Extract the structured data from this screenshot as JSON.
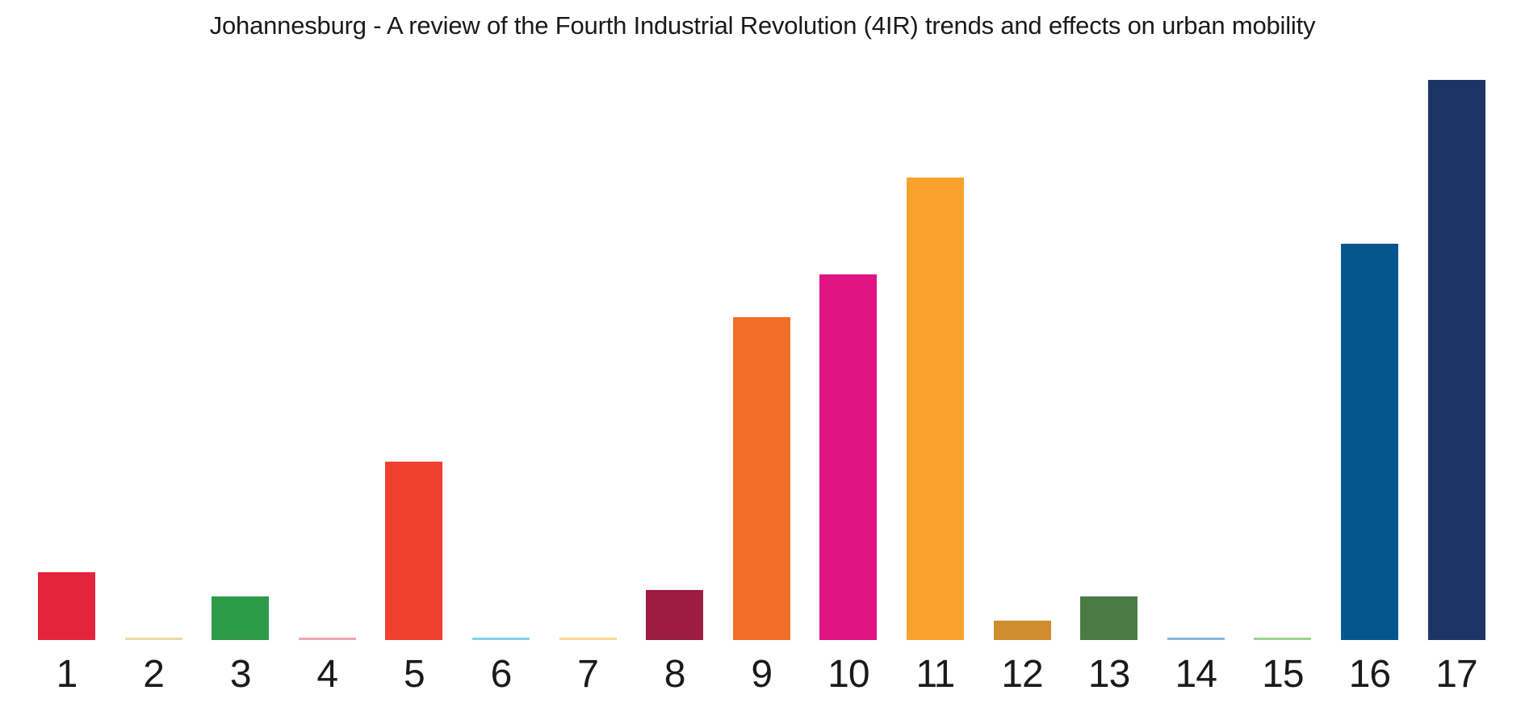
{
  "page": {
    "background_color": "#FFFFFF"
  },
  "chart_data": {
    "type": "bar",
    "title": "Johannesburg - A review of the Fourth Industrial Revolution (4IR) trends and effects on urban mobility",
    "xlabel": "",
    "ylabel": "",
    "axes_visible": false,
    "gridlines": false,
    "legend_position": "none",
    "value_scale_note": "no y-axis shown; values are relative bar heights as percent of the tallest bar (bar 17 = 100)",
    "ylim": [
      0,
      100
    ],
    "categories": [
      "1",
      "2",
      "3",
      "4",
      "5",
      "6",
      "7",
      "8",
      "9",
      "10",
      "11",
      "12",
      "13",
      "14",
      "15",
      "16",
      "17"
    ],
    "values": [
      12.1,
      0.5,
      7.8,
      0.4,
      31.8,
      0.4,
      0.4,
      8.9,
      57.7,
      65.3,
      82.6,
      3.5,
      7.8,
      0.4,
      0.4,
      70.7,
      100
    ],
    "bar_colors": [
      "#E5243B",
      "#EDD9A3",
      "#2E9B4A",
      "#F0A4B0",
      "#EF402D",
      "#7FD4EC",
      "#FBD98D",
      "#9C1C42",
      "#F26D28",
      "#E01383",
      "#F8A12C",
      "#CE8E2D",
      "#4A7B44",
      "#85B7DE",
      "#9CD193",
      "#03578D",
      "#1C3566"
    ],
    "title_color": "#1A1A1A",
    "tick_label_color": "#1A1A1A"
  }
}
